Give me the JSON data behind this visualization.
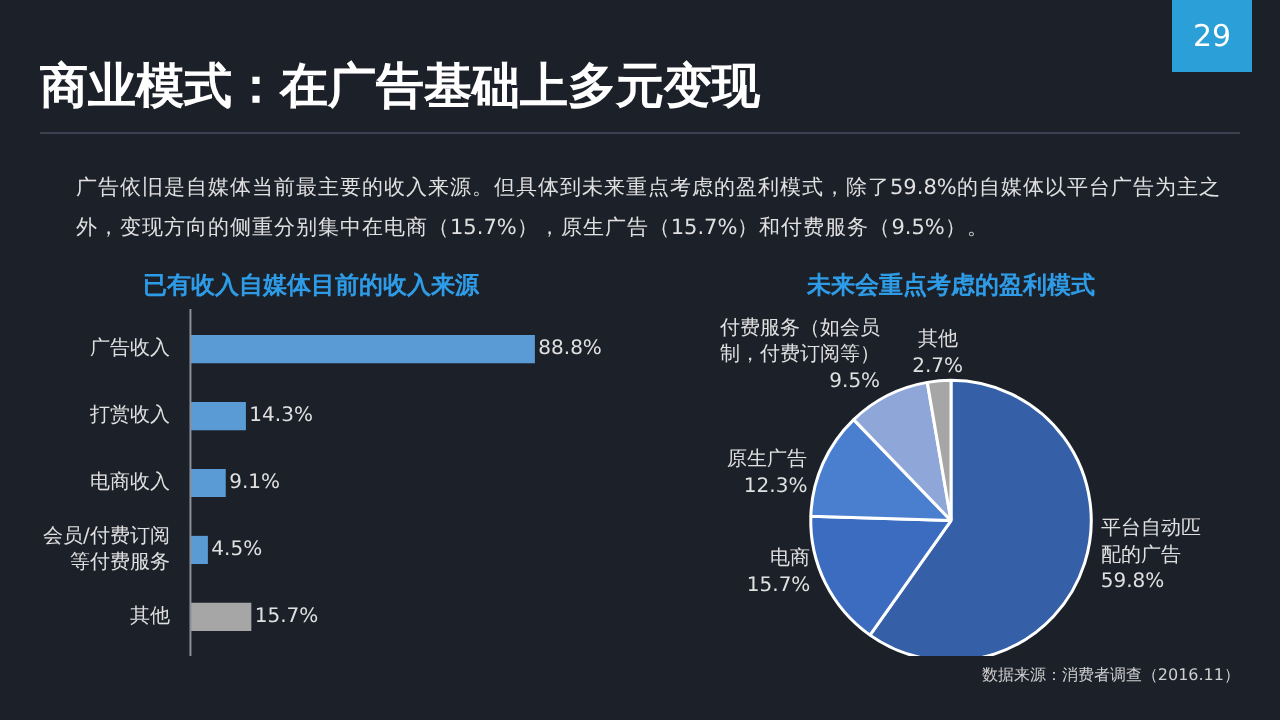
{
  "chart_data": [
    {
      "type": "other",
      "title": "商业模式：在广告基础上多元变现",
      "annotations": [
        "29",
        "广告依旧是自媒体当前最主要的收入来源。但具体到未来重点考虑的盈利模式，除了59.8%的自媒体以平台广告为主之外，变现方向的侧重分别集中在电商（15.7%），原生广告（15.7%）和付费服务（9.5%）。"
      ]
    },
    {
      "type": "bar",
      "orientation": "horizontal",
      "title": "已有收入自媒体目前的收入来源",
      "categories": [
        "广告收入",
        "打赏收入",
        "电商收入",
        "会员/付费订阅等付费服务",
        "其他"
      ],
      "values": [
        88.8,
        14.3,
        9.1,
        4.5,
        15.7
      ],
      "colors": [
        "#5b9bd5",
        "#5b9bd5",
        "#5b9bd5",
        "#5b9bd5",
        "#a6a6a6"
      ],
      "value_labels": [
        "88.8%",
        "14.3%",
        "9.1%",
        "4.5%",
        "15.7%"
      ]
    },
    {
      "type": "pie",
      "title": "未来会重点考虑的盈利模式",
      "categories": [
        "平台自动匹配的广告",
        "电商",
        "原生广告",
        "付费服务（如会员制，付费订阅等）",
        "其他"
      ],
      "values": [
        59.8,
        15.7,
        12.3,
        9.5,
        2.7
      ],
      "colors": [
        "#3560a8",
        "#3b6cc0",
        "#4a7fd0",
        "#8fa6d8",
        "#a6a6a6"
      ],
      "value_labels": [
        "59.8%",
        "15.7%",
        "12.3%",
        "9.5%",
        "2.7%"
      ],
      "annotations": [
        "数据来源：消费者调查（2016.11）"
      ]
    }
  ]
}
